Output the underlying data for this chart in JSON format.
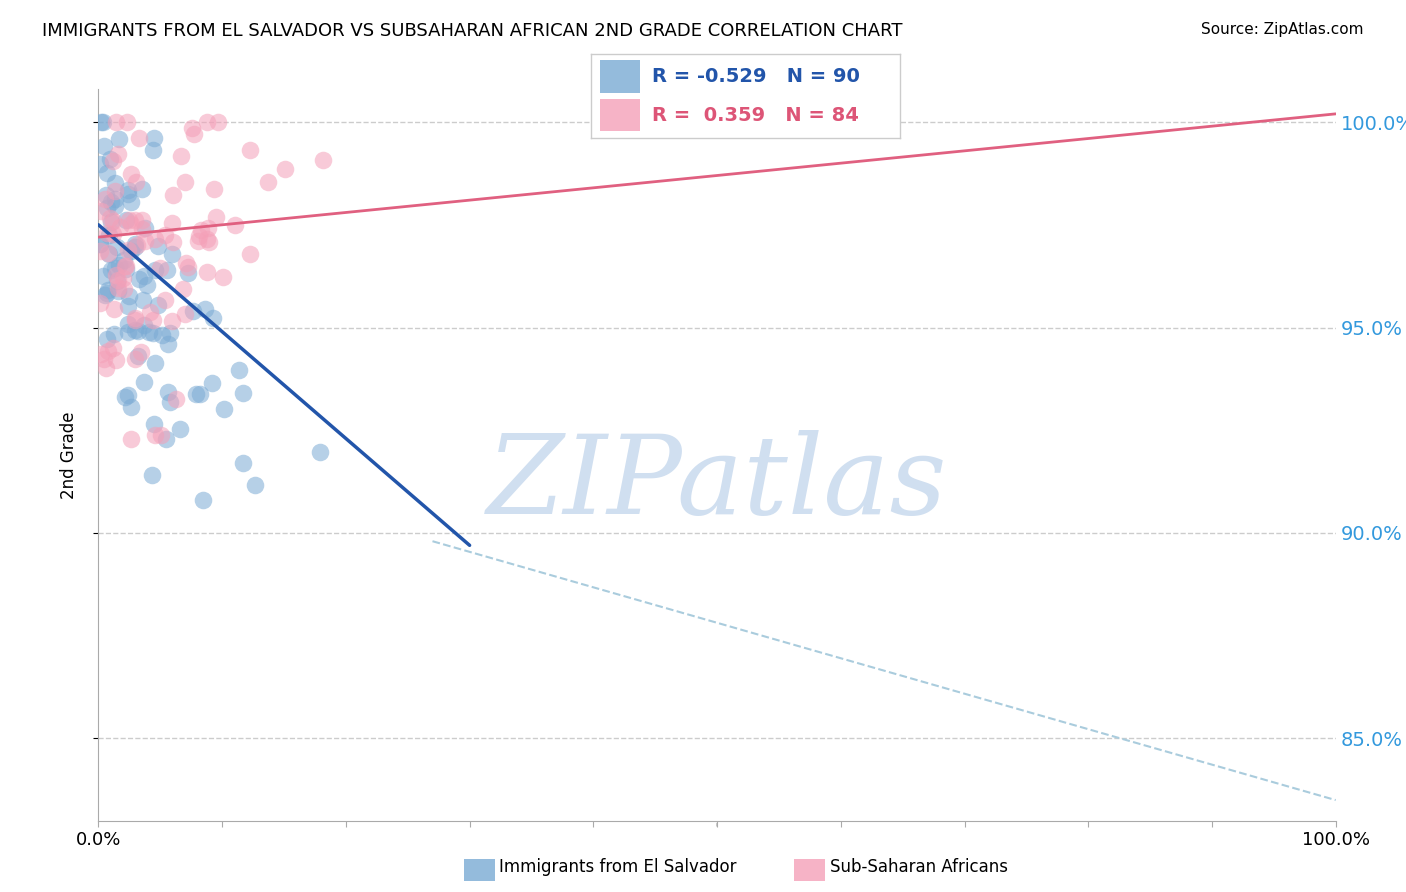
{
  "title": "IMMIGRANTS FROM EL SALVADOR VS SUBSAHARAN AFRICAN 2ND GRADE CORRELATION CHART",
  "source": "Source: ZipAtlas.com",
  "ylabel": "2nd Grade",
  "yticks_right_vals": [
    1.0,
    0.95,
    0.9,
    0.85
  ],
  "yticks_right_labels": [
    "100.0%",
    "95.0%",
    "90.0%",
    "85.0%"
  ],
  "legend_blue_label": "R = -0.529   N = 90",
  "legend_pink_label": "R =  0.359   N = 84",
  "blue_R": -0.529,
  "blue_N": 90,
  "pink_R": 0.359,
  "pink_N": 84,
  "watermark": "ZIPatlas",
  "watermark_color": "#d0dff0",
  "blue_scatter_color": "#7aaad4",
  "pink_scatter_color": "#f4a0b8",
  "blue_line_color": "#2255aa",
  "pink_line_color": "#e06080",
  "dashed_line_color": "#aaccdd",
  "xlim": [
    0.0,
    1.0
  ],
  "ylim": [
    0.83,
    1.008
  ],
  "blue_line_x0": 0.0,
  "blue_line_y0": 0.975,
  "blue_line_x1": 0.3,
  "blue_line_y1": 0.897,
  "pink_line_x0": 0.0,
  "pink_line_y0": 0.972,
  "pink_line_x1": 1.0,
  "pink_line_y1": 1.002,
  "dash_line_x0": 0.27,
  "dash_line_y0": 0.898,
  "dash_line_x1": 1.0,
  "dash_line_y1": 0.835,
  "legend_fontsize": 14,
  "tick_label_fontsize": 13,
  "title_fontsize": 13,
  "source_fontsize": 11
}
